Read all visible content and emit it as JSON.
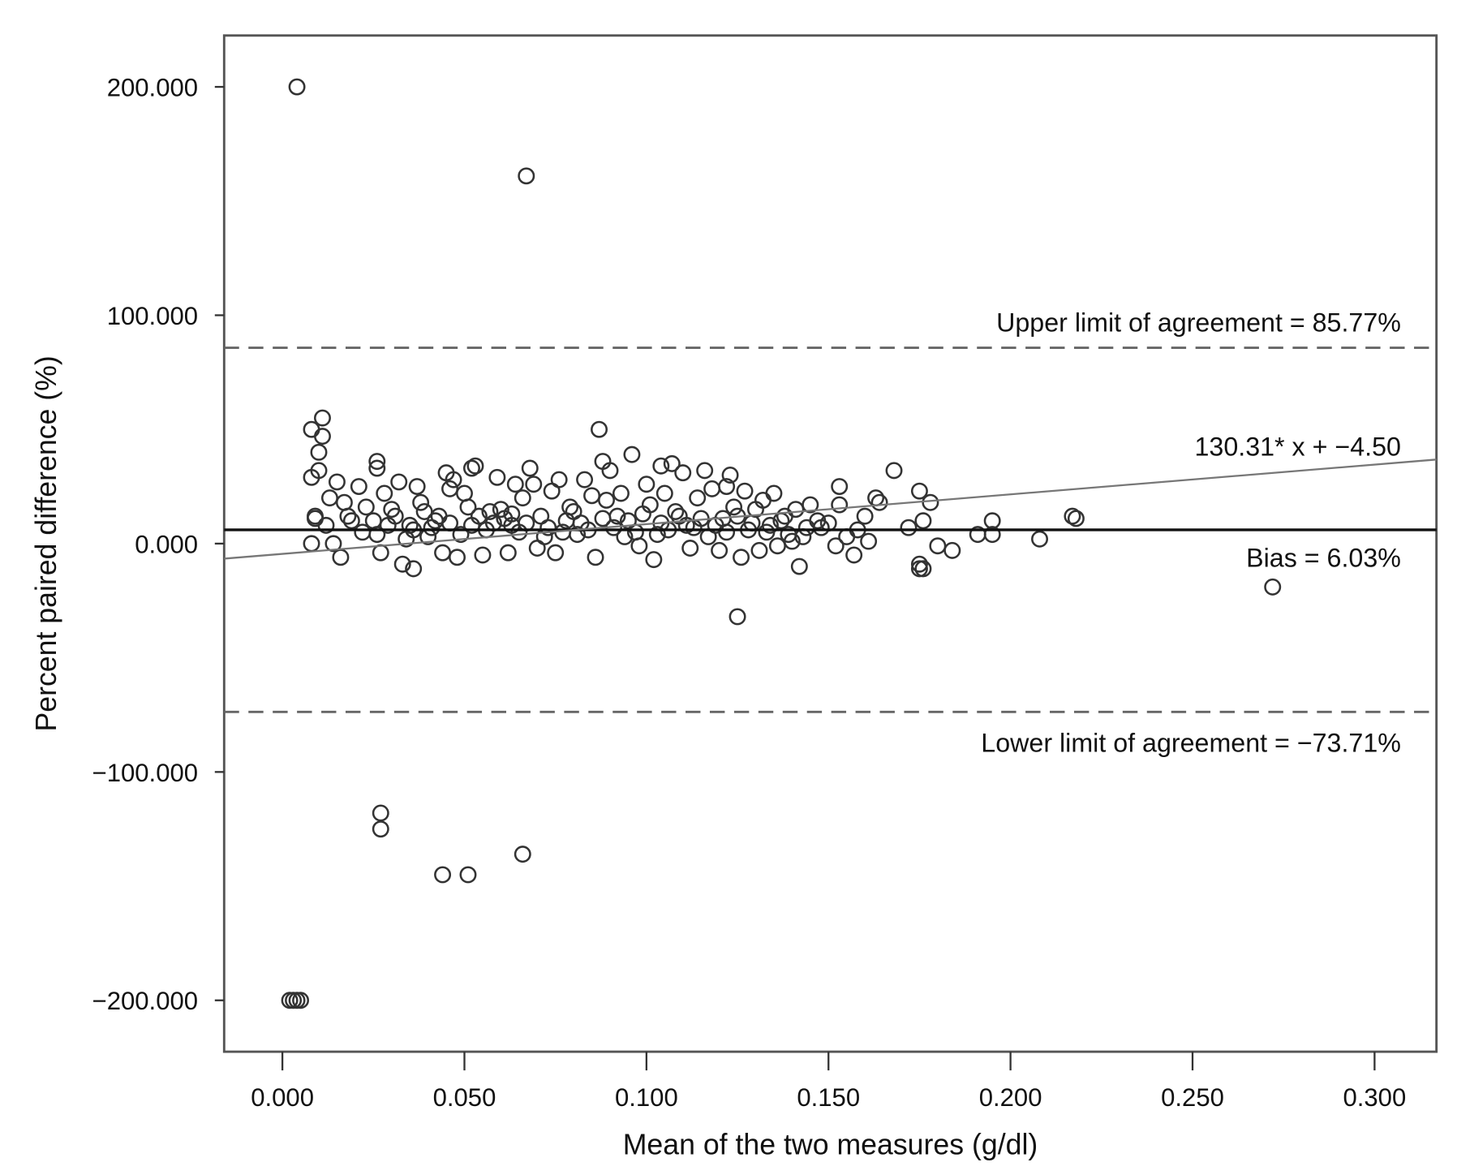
{
  "chart_data": {
    "type": "scatter",
    "title": "",
    "xlabel": "Mean of the two measures (g/dl)",
    "ylabel": "Percent paired difference (%)",
    "xlim": [
      -0.016,
      0.317
    ],
    "ylim": [
      -222.5,
      222.5
    ],
    "xticks": [
      0,
      0.05,
      0.1,
      0.15,
      0.2,
      0.25,
      0.3
    ],
    "xtick_labels": [
      "0.000",
      "0.050",
      "0.100",
      "0.150",
      "0.200",
      "0.250",
      "0.300"
    ],
    "yticks": [
      200,
      100,
      0,
      -100,
      -200
    ],
    "ytick_labels": [
      "200.000",
      "100.000",
      "0.000",
      "−100.000",
      "−200.000"
    ],
    "grid": false,
    "bias": 6.03,
    "upper_loa": 85.77,
    "lower_loa": -73.71,
    "regression": {
      "slope": 130.31,
      "intercept": -4.5
    },
    "annotations": {
      "upper": "Upper limit of agreement = 85.77%",
      "regression": "130.31* x + −4.50",
      "bias": "Bias = 6.03%",
      "lower": "Lower limit of agreement = −73.71%"
    },
    "points": [
      [
        0.004,
        200
      ],
      [
        0.067,
        161
      ],
      [
        0.027,
        -118
      ],
      [
        0.027,
        -125
      ],
      [
        0.044,
        -145
      ],
      [
        0.051,
        -145
      ],
      [
        0.066,
        -136
      ],
      [
        0.002,
        -200
      ],
      [
        0.003,
        -200
      ],
      [
        0.004,
        -200
      ],
      [
        0.005,
        -200
      ],
      [
        0.272,
        -19
      ],
      [
        0.125,
        -32
      ],
      [
        0.218,
        11
      ],
      [
        0.217,
        12
      ],
      [
        0.208,
        2
      ],
      [
        0.195,
        10
      ],
      [
        0.195,
        4
      ],
      [
        0.191,
        4
      ],
      [
        0.184,
        -3
      ],
      [
        0.18,
        -1
      ],
      [
        0.175,
        -11
      ],
      [
        0.175,
        -9
      ],
      [
        0.176,
        -11
      ],
      [
        0.178,
        18
      ],
      [
        0.176,
        10
      ],
      [
        0.175,
        23
      ],
      [
        0.172,
        7
      ],
      [
        0.168,
        32
      ],
      [
        0.163,
        20
      ],
      [
        0.164,
        18
      ],
      [
        0.16,
        12
      ],
      [
        0.161,
        1
      ],
      [
        0.157,
        -5
      ],
      [
        0.155,
        3
      ],
      [
        0.153,
        25
      ],
      [
        0.153,
        17
      ],
      [
        0.152,
        -1
      ],
      [
        0.147,
        10
      ],
      [
        0.145,
        17
      ],
      [
        0.142,
        -10
      ],
      [
        0.141,
        15
      ],
      [
        0.148,
        7
      ],
      [
        0.143,
        3
      ],
      [
        0.008,
        50
      ],
      [
        0.011,
        55
      ],
      [
        0.011,
        47
      ],
      [
        0.01,
        40
      ],
      [
        0.01,
        32
      ],
      [
        0.008,
        29
      ],
      [
        0.009,
        12
      ],
      [
        0.009,
        11
      ],
      [
        0.008,
        0
      ],
      [
        0.014,
        0
      ],
      [
        0.016,
        -6
      ],
      [
        0.013,
        20
      ],
      [
        0.015,
        27
      ],
      [
        0.017,
        18
      ],
      [
        0.019,
        10
      ],
      [
        0.021,
        25
      ],
      [
        0.023,
        16
      ],
      [
        0.026,
        36
      ],
      [
        0.026,
        33
      ],
      [
        0.027,
        -4
      ],
      [
        0.026,
        4
      ],
      [
        0.028,
        22
      ],
      [
        0.03,
        15
      ],
      [
        0.032,
        27
      ],
      [
        0.033,
        -9
      ],
      [
        0.036,
        -11
      ],
      [
        0.035,
        8
      ],
      [
        0.037,
        25
      ],
      [
        0.038,
        18
      ],
      [
        0.04,
        3
      ],
      [
        0.042,
        10
      ],
      [
        0.044,
        -4
      ],
      [
        0.045,
        31
      ],
      [
        0.046,
        24
      ],
      [
        0.047,
        28
      ],
      [
        0.048,
        -6
      ],
      [
        0.05,
        22
      ],
      [
        0.051,
        16
      ],
      [
        0.052,
        33
      ],
      [
        0.053,
        34
      ],
      [
        0.055,
        -5
      ],
      [
        0.057,
        14
      ],
      [
        0.059,
        29
      ],
      [
        0.06,
        15
      ],
      [
        0.062,
        -4
      ],
      [
        0.063,
        8
      ],
      [
        0.064,
        26
      ],
      [
        0.066,
        20
      ],
      [
        0.068,
        33
      ],
      [
        0.069,
        26
      ],
      [
        0.07,
        -2
      ],
      [
        0.072,
        3
      ],
      [
        0.074,
        23
      ],
      [
        0.075,
        -4
      ],
      [
        0.076,
        28
      ],
      [
        0.078,
        10
      ],
      [
        0.08,
        14
      ],
      [
        0.081,
        4
      ],
      [
        0.083,
        28
      ],
      [
        0.085,
        21
      ],
      [
        0.086,
        -6
      ],
      [
        0.087,
        50
      ],
      [
        0.088,
        36
      ],
      [
        0.089,
        19
      ],
      [
        0.09,
        32
      ],
      [
        0.092,
        12
      ],
      [
        0.093,
        22
      ],
      [
        0.094,
        3
      ],
      [
        0.096,
        39
      ],
      [
        0.098,
        -1
      ],
      [
        0.1,
        26
      ],
      [
        0.101,
        17
      ],
      [
        0.102,
        -7
      ],
      [
        0.103,
        4
      ],
      [
        0.104,
        34
      ],
      [
        0.105,
        22
      ],
      [
        0.107,
        35
      ],
      [
        0.108,
        14
      ],
      [
        0.11,
        31
      ],
      [
        0.111,
        8
      ],
      [
        0.112,
        -2
      ],
      [
        0.114,
        20
      ],
      [
        0.116,
        32
      ],
      [
        0.117,
        3
      ],
      [
        0.118,
        24
      ],
      [
        0.12,
        -3
      ],
      [
        0.121,
        11
      ],
      [
        0.122,
        25
      ],
      [
        0.123,
        30
      ],
      [
        0.124,
        16
      ],
      [
        0.126,
        -6
      ],
      [
        0.127,
        23
      ],
      [
        0.128,
        6
      ],
      [
        0.13,
        15
      ],
      [
        0.131,
        -3
      ],
      [
        0.132,
        19
      ],
      [
        0.134,
        8
      ],
      [
        0.135,
        22
      ],
      [
        0.136,
        -1
      ],
      [
        0.138,
        12
      ],
      [
        0.139,
        4
      ],
      [
        0.14,
        1
      ],
      [
        0.012,
        8
      ],
      [
        0.018,
        12
      ],
      [
        0.022,
        5
      ],
      [
        0.025,
        10
      ],
      [
        0.029,
        8
      ],
      [
        0.031,
        12
      ],
      [
        0.034,
        2
      ],
      [
        0.036,
        6
      ],
      [
        0.039,
        14
      ],
      [
        0.041,
        7
      ],
      [
        0.043,
        12
      ],
      [
        0.046,
        9
      ],
      [
        0.049,
        4
      ],
      [
        0.052,
        8
      ],
      [
        0.054,
        12
      ],
      [
        0.056,
        6
      ],
      [
        0.058,
        9
      ],
      [
        0.061,
        11
      ],
      [
        0.063,
        13
      ],
      [
        0.065,
        5
      ],
      [
        0.067,
        9
      ],
      [
        0.071,
        12
      ],
      [
        0.073,
        7
      ],
      [
        0.077,
        5
      ],
      [
        0.079,
        16
      ],
      [
        0.082,
        9
      ],
      [
        0.084,
        6
      ],
      [
        0.088,
        11
      ],
      [
        0.091,
        7
      ],
      [
        0.095,
        10
      ],
      [
        0.097,
        5
      ],
      [
        0.099,
        13
      ],
      [
        0.104,
        9
      ],
      [
        0.106,
        6
      ],
      [
        0.109,
        12
      ],
      [
        0.113,
        7
      ],
      [
        0.115,
        11
      ],
      [
        0.119,
        8
      ],
      [
        0.122,
        5
      ],
      [
        0.125,
        12
      ],
      [
        0.129,
        9
      ],
      [
        0.133,
        5
      ],
      [
        0.137,
        10
      ],
      [
        0.144,
        7
      ],
      [
        0.15,
        9
      ],
      [
        0.158,
        6
      ]
    ]
  }
}
